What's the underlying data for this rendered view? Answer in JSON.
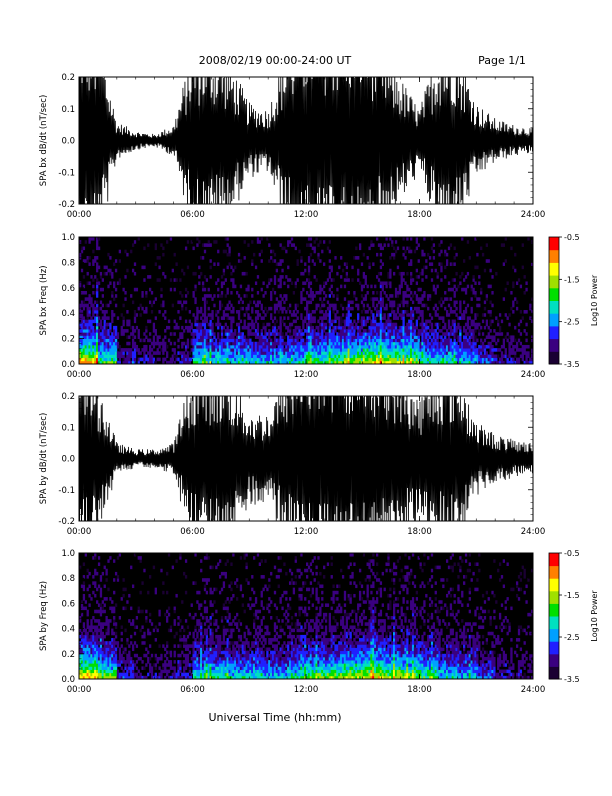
{
  "header": {
    "date_range": "2008/02/19   00:00-24:00 UT",
    "page": "Page 1/1"
  },
  "footer": {
    "xlabel": "Universal Time (hh:mm)"
  },
  "colors": {
    "background": "#ffffff",
    "trace": "#000000",
    "spectrogram_floor": "#000000",
    "colormap": [
      "#1a0033",
      "#3a0080",
      "#2020ff",
      "#00a0ff",
      "#00e0c0",
      "#00e000",
      "#a0e000",
      "#ffff00",
      "#ff8000",
      "#ff0000"
    ]
  },
  "chart_data": [
    {
      "type": "line",
      "ylabel": "SPA bx dB/dt (nT/sec)",
      "x_ticks": [
        "00:00",
        "06:00",
        "12:00",
        "18:00",
        "24:00"
      ],
      "xlim_hours": [
        0,
        24
      ],
      "y_ticks": [
        "0.2",
        "0.1",
        "0.0",
        "-0.1",
        "-0.2"
      ],
      "ylim": [
        -0.2,
        0.2
      ],
      "amplitude_envelope": {
        "hours": [
          0,
          1,
          2,
          3,
          4,
          5,
          6,
          7,
          8,
          9,
          10,
          11,
          12,
          13,
          14,
          15,
          16,
          17,
          18,
          19,
          20,
          21,
          22,
          23,
          24
        ],
        "amplitude": [
          0.4,
          0.35,
          0.06,
          0.03,
          0.02,
          0.05,
          0.3,
          0.3,
          0.25,
          0.12,
          0.1,
          0.3,
          0.4,
          0.4,
          0.4,
          0.4,
          0.3,
          0.2,
          0.1,
          0.3,
          0.3,
          0.12,
          0.07,
          0.05,
          0.04
        ]
      },
      "grid": false
    },
    {
      "type": "heatmap",
      "ylabel": "SPA bx Freq (Hz)",
      "x_ticks": [
        "00:00",
        "06:00",
        "12:00",
        "18:00",
        "24:00"
      ],
      "xlim_hours": [
        0,
        24
      ],
      "y_ticks": [
        "1.0",
        "0.8",
        "0.6",
        "0.4",
        "0.2",
        "0.0"
      ],
      "ylim": [
        0.0,
        1.0
      ],
      "colorbar": {
        "label": "Log10 Power",
        "ticks": [
          "-0.5",
          "-1.5",
          "-2.5",
          "-3.5"
        ],
        "range": [
          -3.5,
          -0.5
        ]
      },
      "activity_by_hour": [
        0.9,
        0.6,
        0.2,
        0.15,
        0.15,
        0.2,
        0.55,
        0.5,
        0.5,
        0.45,
        0.4,
        0.5,
        0.6,
        0.65,
        0.7,
        0.8,
        0.75,
        0.7,
        0.55,
        0.5,
        0.45,
        0.3,
        0.2,
        0.15
      ],
      "grid": false
    },
    {
      "type": "line",
      "ylabel": "SPA by dB/dt (nT/sec)",
      "x_ticks": [
        "00:00",
        "06:00",
        "12:00",
        "18:00",
        "24:00"
      ],
      "xlim_hours": [
        0,
        24
      ],
      "y_ticks": [
        "0.2",
        "0.1",
        "0.0",
        "-0.1",
        "-0.2"
      ],
      "ylim": [
        -0.2,
        0.2
      ],
      "amplitude_envelope": {
        "hours": [
          0,
          1,
          2,
          3,
          4,
          5,
          6,
          7,
          8,
          9,
          10,
          11,
          12,
          13,
          14,
          15,
          16,
          17,
          18,
          19,
          20,
          21,
          22,
          23,
          24
        ],
        "amplitude": [
          0.4,
          0.25,
          0.05,
          0.03,
          0.03,
          0.05,
          0.3,
          0.3,
          0.28,
          0.15,
          0.15,
          0.3,
          0.4,
          0.4,
          0.4,
          0.4,
          0.35,
          0.3,
          0.2,
          0.3,
          0.3,
          0.12,
          0.08,
          0.06,
          0.05
        ]
      },
      "grid": false
    },
    {
      "type": "heatmap",
      "ylabel": "SPA by Freq (Hz)",
      "x_ticks": [
        "00:00",
        "06:00",
        "12:00",
        "18:00",
        "24:00"
      ],
      "xlim_hours": [
        0,
        24
      ],
      "y_ticks": [
        "1.0",
        "0.8",
        "0.6",
        "0.4",
        "0.2",
        "0.0"
      ],
      "ylim": [
        0.0,
        1.0
      ],
      "colorbar": {
        "label": "Log10 Power",
        "ticks": [
          "-0.5",
          "-1.5",
          "-2.5",
          "-3.5"
        ],
        "range": [
          -3.5,
          -0.5
        ]
      },
      "activity_by_hour": [
        0.9,
        0.65,
        0.25,
        0.15,
        0.15,
        0.2,
        0.55,
        0.55,
        0.5,
        0.5,
        0.45,
        0.55,
        0.65,
        0.7,
        0.75,
        0.8,
        0.75,
        0.7,
        0.6,
        0.5,
        0.45,
        0.3,
        0.2,
        0.15
      ],
      "grid": false
    }
  ]
}
